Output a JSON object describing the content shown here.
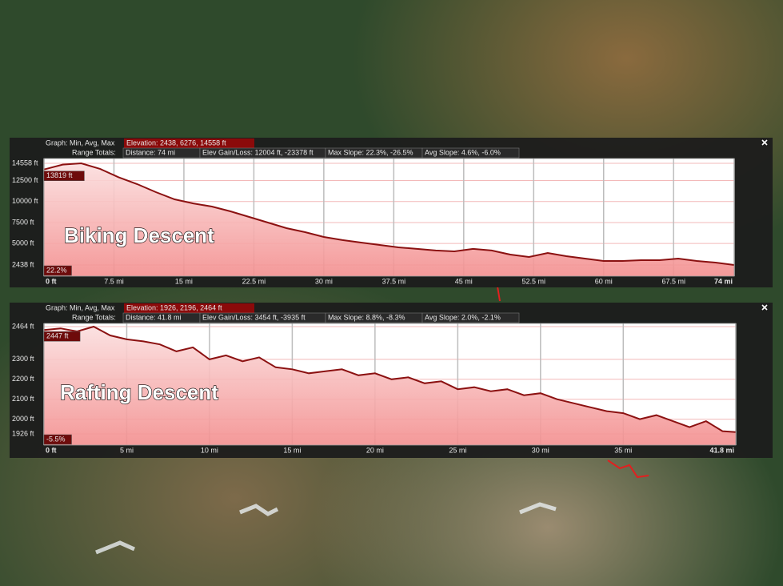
{
  "chart_data": [
    {
      "type": "line",
      "title": "Biking Descent",
      "info": {
        "graph_label": "Graph: Min, Avg, Max",
        "elevation": "Elevation: 2438, 6276, 14558 ft",
        "range_label": "Range Totals:",
        "distance": "Distance: 74 mi",
        "gain_loss": "Elev Gain/Loss: 12004 ft, -23378 ft",
        "max_slope": "Max Slope: 22.3%, -26.5%",
        "avg_slope": "Avg Slope: 4.6%, -6.0%"
      },
      "current_label": "13819 ft",
      "slope_label": "22.2%",
      "x": [
        0,
        2,
        4,
        6,
        8,
        10,
        12,
        14,
        16,
        18,
        20,
        22,
        24,
        26,
        28,
        30,
        32,
        34,
        36,
        38,
        40,
        42,
        44,
        46,
        48,
        50,
        52,
        54,
        56,
        58,
        60,
        62,
        64,
        66,
        68,
        70,
        72,
        74
      ],
      "values": [
        13819,
        14400,
        14558,
        13900,
        12900,
        12073,
        11120,
        10260,
        9780,
        9400,
        8830,
        8160,
        7490,
        6830,
        6350,
        5780,
        5400,
        5110,
        4820,
        4540,
        4350,
        4160,
        4060,
        4350,
        4160,
        3680,
        3390,
        3870,
        3490,
        3200,
        2910,
        2910,
        3010,
        3010,
        3200,
        2910,
        2720,
        2438
      ],
      "color": "#8b1111",
      "fill": "#f4a3a3",
      "xlim": [
        0,
        74
      ],
      "ylim": [
        1100,
        15130
      ],
      "xticks": [
        {
          "value": 0,
          "label": "0 ft"
        },
        {
          "value": 7.5,
          "label": "7.5 mi"
        },
        {
          "value": 15,
          "label": "15 mi"
        },
        {
          "value": 22.5,
          "label": "22.5 mi"
        },
        {
          "value": 30,
          "label": "30 mi"
        },
        {
          "value": 37.5,
          "label": "37.5 mi"
        },
        {
          "value": 45,
          "label": "45 mi"
        },
        {
          "value": 52.5,
          "label": "52.5 mi"
        },
        {
          "value": 60,
          "label": "60 mi"
        },
        {
          "value": 67.5,
          "label": "67.5 mi"
        },
        {
          "value": 74,
          "label": "74 mi"
        }
      ],
      "yticks": [
        {
          "value": 14558,
          "label": "14558 ft"
        },
        {
          "value": 12500,
          "label": "12500 ft"
        },
        {
          "value": 10000,
          "label": "10000 ft"
        },
        {
          "value": 7500,
          "label": "7500 ft"
        },
        {
          "value": 5000,
          "label": "5000 ft"
        },
        {
          "value": 2438,
          "label": "2438 ft"
        }
      ],
      "grid": true
    },
    {
      "type": "line",
      "title": "Rafting Descent",
      "info": {
        "graph_label": "Graph: Min, Avg, Max",
        "elevation": "Elevation: 1926, 2196, 2464 ft",
        "range_label": "Range Totals:",
        "distance": "Distance: 41.8 mi",
        "gain_loss": "Elev Gain/Loss: 3454 ft, -3935 ft",
        "max_slope": "Max Slope: 8.8%, -8.3%",
        "avg_slope": "Avg Slope: 2.0%, -2.1%"
      },
      "current_label": "2447 ft",
      "slope_label": "-5.5%",
      "x": [
        0,
        1,
        2,
        3,
        4,
        5,
        6,
        7,
        8,
        9,
        10,
        11,
        12,
        13,
        14,
        15,
        16,
        17,
        18,
        19,
        20,
        21,
        22,
        23,
        24,
        25,
        26,
        27,
        28,
        29,
        30,
        31,
        32,
        33,
        34,
        35,
        36,
        37,
        38,
        39,
        40,
        41,
        41.8
      ],
      "values": [
        2447,
        2455,
        2440,
        2464,
        2420,
        2400,
        2390,
        2375,
        2340,
        2360,
        2300,
        2320,
        2290,
        2310,
        2260,
        2250,
        2230,
        2240,
        2250,
        2220,
        2230,
        2200,
        2210,
        2180,
        2190,
        2150,
        2160,
        2140,
        2150,
        2120,
        2130,
        2100,
        2080,
        2060,
        2040,
        2030,
        2000,
        2020,
        1990,
        1960,
        1990,
        1940,
        1935
      ],
      "color": "#8b1111",
      "fill": "#f4a3a3",
      "xlim": [
        0,
        41.8
      ],
      "ylim": [
        1870,
        2480
      ],
      "xticks": [
        {
          "value": 0,
          "label": "0 ft"
        },
        {
          "value": 5,
          "label": "5 mi"
        },
        {
          "value": 10,
          "label": "10 mi"
        },
        {
          "value": 15,
          "label": "15 mi"
        },
        {
          "value": 20,
          "label": "20 mi"
        },
        {
          "value": 25,
          "label": "25 mi"
        },
        {
          "value": 30,
          "label": "30 mi"
        },
        {
          "value": 35,
          "label": "35 mi"
        },
        {
          "value": 41.8,
          "label": "41.8 mi"
        }
      ],
      "yticks": [
        {
          "value": 2464,
          "label": "2464 ft"
        },
        {
          "value": 2300,
          "label": "2300 ft"
        },
        {
          "value": 2200,
          "label": "2200 ft"
        },
        {
          "value": 2100,
          "label": "2100 ft"
        },
        {
          "value": 2000,
          "label": "2000 ft"
        },
        {
          "value": 1926,
          "label": "1926 ft"
        }
      ],
      "grid": true
    }
  ]
}
